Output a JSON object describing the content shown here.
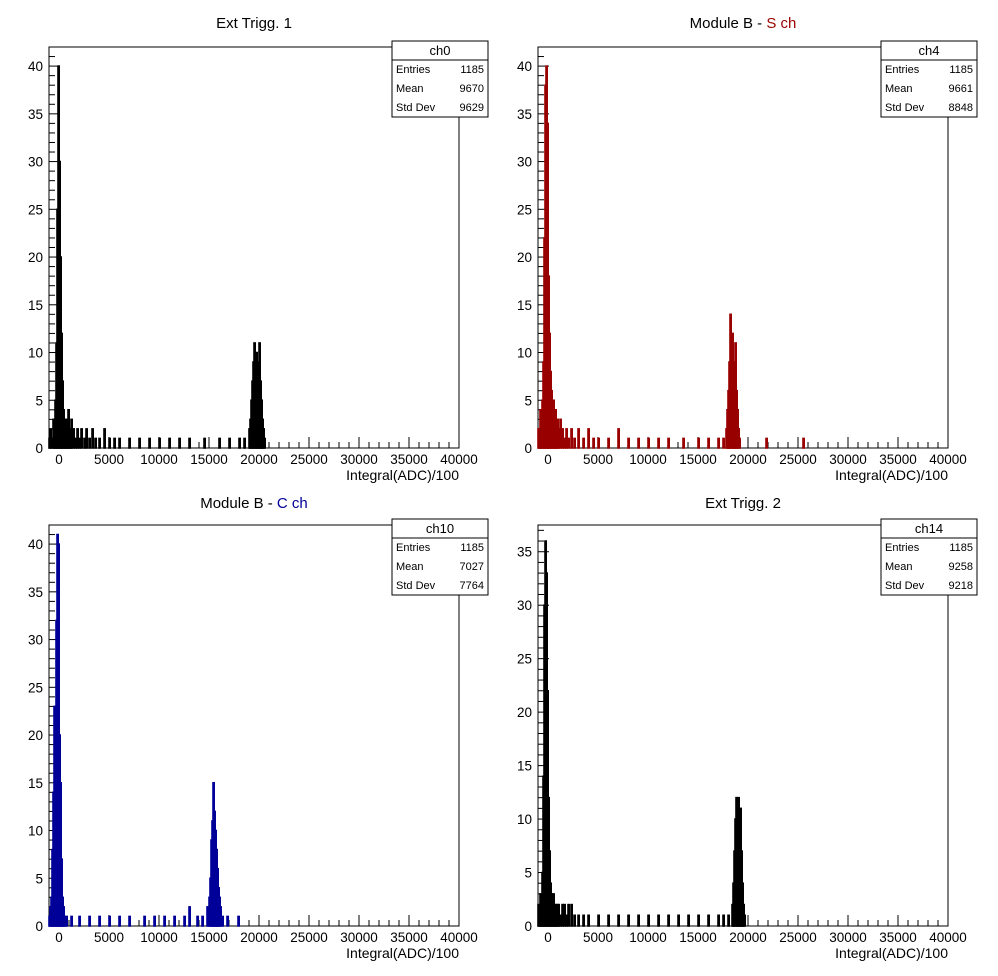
{
  "chart_data": [
    {
      "type": "bar",
      "title": "Ext Trigg. 1",
      "title_parts": [],
      "xlabel": "Integral(ADC)/100",
      "ylabel": "",
      "xlim": [
        -1000,
        40000
      ],
      "ylim": [
        0,
        42
      ],
      "x_ticks": [
        "0",
        "5000",
        "10000",
        "15000",
        "20000",
        "25000",
        "30000",
        "35000",
        "40000"
      ],
      "y_ticks": [
        "0",
        "5",
        "10",
        "15",
        "20",
        "25",
        "30",
        "35",
        "40"
      ],
      "color": "#000000",
      "legend": "none",
      "grid": false,
      "stats": {
        "name": "ch0",
        "rows": [
          {
            "label": "Entries",
            "value": "1185"
          },
          {
            "label": "Mean",
            "value": "9670"
          },
          {
            "label": "Std Dev",
            "value": "9629"
          }
        ]
      },
      "bin_width": 100,
      "bins": [
        {
          "x": -1000,
          "y": 1
        },
        {
          "x": -900,
          "y": 2
        },
        {
          "x": -800,
          "y": 0
        },
        {
          "x": -700,
          "y": 1
        },
        {
          "x": -600,
          "y": 3
        },
        {
          "x": -500,
          "y": 2
        },
        {
          "x": -400,
          "y": 5
        },
        {
          "x": -300,
          "y": 11
        },
        {
          "x": -200,
          "y": 25
        },
        {
          "x": -100,
          "y": 40
        },
        {
          "x": 0,
          "y": 30
        },
        {
          "x": 100,
          "y": 20
        },
        {
          "x": 200,
          "y": 12
        },
        {
          "x": 300,
          "y": 7
        },
        {
          "x": 400,
          "y": 4
        },
        {
          "x": 500,
          "y": 3
        },
        {
          "x": 600,
          "y": 2
        },
        {
          "x": 700,
          "y": 3
        },
        {
          "x": 800,
          "y": 1
        },
        {
          "x": 900,
          "y": 4
        },
        {
          "x": 1000,
          "y": 2
        },
        {
          "x": 1100,
          "y": 1
        },
        {
          "x": 1200,
          "y": 3
        },
        {
          "x": 1400,
          "y": 2
        },
        {
          "x": 1600,
          "y": 1
        },
        {
          "x": 1800,
          "y": 2
        },
        {
          "x": 2000,
          "y": 1
        },
        {
          "x": 2200,
          "y": 2
        },
        {
          "x": 2500,
          "y": 1
        },
        {
          "x": 2700,
          "y": 2
        },
        {
          "x": 3000,
          "y": 1
        },
        {
          "x": 3300,
          "y": 2
        },
        {
          "x": 3600,
          "y": 1
        },
        {
          "x": 4000,
          "y": 1
        },
        {
          "x": 4500,
          "y": 2
        },
        {
          "x": 5000,
          "y": 1
        },
        {
          "x": 5500,
          "y": 1
        },
        {
          "x": 6000,
          "y": 1
        },
        {
          "x": 7000,
          "y": 1
        },
        {
          "x": 8000,
          "y": 1
        },
        {
          "x": 9000,
          "y": 1
        },
        {
          "x": 10000,
          "y": 1
        },
        {
          "x": 11000,
          "y": 1
        },
        {
          "x": 12000,
          "y": 1
        },
        {
          "x": 13000,
          "y": 1
        },
        {
          "x": 14500,
          "y": 1
        },
        {
          "x": 16000,
          "y": 1
        },
        {
          "x": 17000,
          "y": 1
        },
        {
          "x": 18000,
          "y": 1
        },
        {
          "x": 18500,
          "y": 1
        },
        {
          "x": 19000,
          "y": 2
        },
        {
          "x": 19100,
          "y": 3
        },
        {
          "x": 19200,
          "y": 5
        },
        {
          "x": 19300,
          "y": 7
        },
        {
          "x": 19400,
          "y": 9
        },
        {
          "x": 19500,
          "y": 11
        },
        {
          "x": 19600,
          "y": 8
        },
        {
          "x": 19700,
          "y": 10
        },
        {
          "x": 19800,
          "y": 6
        },
        {
          "x": 19900,
          "y": 9
        },
        {
          "x": 20000,
          "y": 11
        },
        {
          "x": 20100,
          "y": 7
        },
        {
          "x": 20200,
          "y": 5
        },
        {
          "x": 20300,
          "y": 3
        },
        {
          "x": 20400,
          "y": 2
        },
        {
          "x": 20500,
          "y": 1
        }
      ]
    },
    {
      "type": "bar",
      "title": "",
      "title_parts": [
        {
          "text": "Module B - ",
          "color": "#000000"
        },
        {
          "text": "S ch",
          "color": "#990000"
        }
      ],
      "xlabel": "Integral(ADC)/100",
      "ylabel": "",
      "xlim": [
        -1000,
        40000
      ],
      "ylim": [
        0,
        42
      ],
      "x_ticks": [
        "0",
        "5000",
        "10000",
        "15000",
        "20000",
        "25000",
        "30000",
        "35000",
        "40000"
      ],
      "y_ticks": [
        "0",
        "5",
        "10",
        "15",
        "20",
        "25",
        "30",
        "35",
        "40"
      ],
      "color": "#990000",
      "legend": "none",
      "grid": false,
      "stats": {
        "name": "ch4",
        "rows": [
          {
            "label": "Entries",
            "value": "1185"
          },
          {
            "label": "Mean",
            "value": "9661"
          },
          {
            "label": "Std Dev",
            "value": "8848"
          }
        ]
      },
      "bin_width": 100,
      "bins": [
        {
          "x": -1000,
          "y": 2
        },
        {
          "x": -900,
          "y": 1
        },
        {
          "x": -800,
          "y": 4
        },
        {
          "x": -700,
          "y": 2
        },
        {
          "x": -600,
          "y": 5
        },
        {
          "x": -500,
          "y": 9
        },
        {
          "x": -400,
          "y": 22
        },
        {
          "x": -300,
          "y": 38
        },
        {
          "x": -200,
          "y": 40
        },
        {
          "x": -100,
          "y": 34
        },
        {
          "x": 0,
          "y": 18
        },
        {
          "x": 100,
          "y": 12
        },
        {
          "x": 200,
          "y": 8
        },
        {
          "x": 300,
          "y": 6
        },
        {
          "x": 400,
          "y": 4
        },
        {
          "x": 500,
          "y": 5
        },
        {
          "x": 600,
          "y": 3
        },
        {
          "x": 700,
          "y": 4
        },
        {
          "x": 800,
          "y": 2
        },
        {
          "x": 900,
          "y": 3
        },
        {
          "x": 1000,
          "y": 2
        },
        {
          "x": 1200,
          "y": 3
        },
        {
          "x": 1400,
          "y": 2
        },
        {
          "x": 1600,
          "y": 1
        },
        {
          "x": 1800,
          "y": 2
        },
        {
          "x": 2000,
          "y": 1
        },
        {
          "x": 2300,
          "y": 2
        },
        {
          "x": 2600,
          "y": 1
        },
        {
          "x": 3000,
          "y": 2
        },
        {
          "x": 3500,
          "y": 1
        },
        {
          "x": 4000,
          "y": 2
        },
        {
          "x": 4500,
          "y": 1
        },
        {
          "x": 5000,
          "y": 1
        },
        {
          "x": 6000,
          "y": 1
        },
        {
          "x": 7000,
          "y": 2
        },
        {
          "x": 8000,
          "y": 1
        },
        {
          "x": 9000,
          "y": 1
        },
        {
          "x": 10000,
          "y": 1
        },
        {
          "x": 11000,
          "y": 1
        },
        {
          "x": 12000,
          "y": 1
        },
        {
          "x": 13500,
          "y": 1
        },
        {
          "x": 15000,
          "y": 1
        },
        {
          "x": 16000,
          "y": 1
        },
        {
          "x": 17000,
          "y": 1
        },
        {
          "x": 17500,
          "y": 1
        },
        {
          "x": 17800,
          "y": 2
        },
        {
          "x": 17900,
          "y": 4
        },
        {
          "x": 18000,
          "y": 6
        },
        {
          "x": 18100,
          "y": 9
        },
        {
          "x": 18200,
          "y": 14
        },
        {
          "x": 18300,
          "y": 8
        },
        {
          "x": 18400,
          "y": 12
        },
        {
          "x": 18500,
          "y": 7
        },
        {
          "x": 18600,
          "y": 9
        },
        {
          "x": 18700,
          "y": 11
        },
        {
          "x": 18800,
          "y": 6
        },
        {
          "x": 18900,
          "y": 4
        },
        {
          "x": 19000,
          "y": 2
        },
        {
          "x": 19100,
          "y": 1
        },
        {
          "x": 21800,
          "y": 1
        },
        {
          "x": 25500,
          "y": 1
        }
      ]
    },
    {
      "type": "bar",
      "title": "",
      "title_parts": [
        {
          "text": "Module B - ",
          "color": "#000000"
        },
        {
          "text": "C ch",
          "color": "#000099"
        }
      ],
      "xlabel": "Integral(ADC)/100",
      "ylabel": "",
      "xlim": [
        -1000,
        40000
      ],
      "ylim": [
        0,
        42
      ],
      "x_ticks": [
        "0",
        "5000",
        "10000",
        "15000",
        "20000",
        "25000",
        "30000",
        "35000",
        "40000"
      ],
      "y_ticks": [
        "0",
        "5",
        "10",
        "15",
        "20",
        "25",
        "30",
        "35",
        "40"
      ],
      "color": "#000099",
      "legend": "none",
      "grid": false,
      "stats": {
        "name": "ch10",
        "rows": [
          {
            "label": "Entries",
            "value": "1185"
          },
          {
            "label": "Mean",
            "value": "7027"
          },
          {
            "label": "Std Dev",
            "value": "7764"
          }
        ]
      },
      "bin_width": 100,
      "bins": [
        {
          "x": -1000,
          "y": 1
        },
        {
          "x": -900,
          "y": 2
        },
        {
          "x": -800,
          "y": 3
        },
        {
          "x": -700,
          "y": 8
        },
        {
          "x": -600,
          "y": 14
        },
        {
          "x": -500,
          "y": 23
        },
        {
          "x": -400,
          "y": 21
        },
        {
          "x": -300,
          "y": 32
        },
        {
          "x": -200,
          "y": 41
        },
        {
          "x": -100,
          "y": 40
        },
        {
          "x": 0,
          "y": 20
        },
        {
          "x": 100,
          "y": 15
        },
        {
          "x": 200,
          "y": 7
        },
        {
          "x": 300,
          "y": 3
        },
        {
          "x": 400,
          "y": 2
        },
        {
          "x": 500,
          "y": 1
        },
        {
          "x": 700,
          "y": 1
        },
        {
          "x": 1200,
          "y": 1
        },
        {
          "x": 2000,
          "y": 1
        },
        {
          "x": 3000,
          "y": 1
        },
        {
          "x": 4000,
          "y": 1
        },
        {
          "x": 5000,
          "y": 1
        },
        {
          "x": 6000,
          "y": 1
        },
        {
          "x": 7000,
          "y": 1
        },
        {
          "x": 8500,
          "y": 1
        },
        {
          "x": 9500,
          "y": 1
        },
        {
          "x": 10500,
          "y": 1
        },
        {
          "x": 11500,
          "y": 1
        },
        {
          "x": 12500,
          "y": 1
        },
        {
          "x": 13000,
          "y": 2
        },
        {
          "x": 13800,
          "y": 1
        },
        {
          "x": 14300,
          "y": 1
        },
        {
          "x": 14800,
          "y": 2
        },
        {
          "x": 15000,
          "y": 3
        },
        {
          "x": 15100,
          "y": 5
        },
        {
          "x": 15200,
          "y": 9
        },
        {
          "x": 15300,
          "y": 11
        },
        {
          "x": 15400,
          "y": 15
        },
        {
          "x": 15500,
          "y": 12
        },
        {
          "x": 15600,
          "y": 10
        },
        {
          "x": 15700,
          "y": 8
        },
        {
          "x": 15800,
          "y": 6
        },
        {
          "x": 15900,
          "y": 4
        },
        {
          "x": 16000,
          "y": 3
        },
        {
          "x": 16100,
          "y": 2
        },
        {
          "x": 16300,
          "y": 1
        },
        {
          "x": 16800,
          "y": 1
        },
        {
          "x": 17900,
          "y": 1
        }
      ]
    },
    {
      "type": "bar",
      "title": "Ext Trigg. 2",
      "title_parts": [],
      "xlabel": "Integral(ADC)/100",
      "ylabel": "",
      "xlim": [
        -1000,
        40000
      ],
      "ylim": [
        0,
        37.5
      ],
      "x_ticks": [
        "0",
        "5000",
        "10000",
        "15000",
        "20000",
        "25000",
        "30000",
        "35000",
        "40000"
      ],
      "y_ticks": [
        "0",
        "5",
        "10",
        "15",
        "20",
        "25",
        "30",
        "35"
      ],
      "color": "#000000",
      "legend": "none",
      "grid": false,
      "stats": {
        "name": "ch14",
        "rows": [
          {
            "label": "Entries",
            "value": "1185"
          },
          {
            "label": "Mean",
            "value": "9258"
          },
          {
            "label": "Std Dev",
            "value": "9218"
          }
        ]
      },
      "bin_width": 100,
      "bins": [
        {
          "x": -1000,
          "y": 2
        },
        {
          "x": -900,
          "y": 1
        },
        {
          "x": -800,
          "y": 3
        },
        {
          "x": -700,
          "y": 2
        },
        {
          "x": -600,
          "y": 5
        },
        {
          "x": -500,
          "y": 14
        },
        {
          "x": -400,
          "y": 30
        },
        {
          "x": -300,
          "y": 36
        },
        {
          "x": -200,
          "y": 33
        },
        {
          "x": -100,
          "y": 22
        },
        {
          "x": 0,
          "y": 12
        },
        {
          "x": 100,
          "y": 7
        },
        {
          "x": 200,
          "y": 4
        },
        {
          "x": 300,
          "y": 3
        },
        {
          "x": 400,
          "y": 2
        },
        {
          "x": 500,
          "y": 3
        },
        {
          "x": 600,
          "y": 2
        },
        {
          "x": 700,
          "y": 2
        },
        {
          "x": 800,
          "y": 1
        },
        {
          "x": 900,
          "y": 2
        },
        {
          "x": 1000,
          "y": 2
        },
        {
          "x": 1200,
          "y": 1
        },
        {
          "x": 1400,
          "y": 2
        },
        {
          "x": 1600,
          "y": 2
        },
        {
          "x": 1800,
          "y": 1
        },
        {
          "x": 2000,
          "y": 2
        },
        {
          "x": 2300,
          "y": 2
        },
        {
          "x": 2600,
          "y": 1
        },
        {
          "x": 3000,
          "y": 1
        },
        {
          "x": 3500,
          "y": 1
        },
        {
          "x": 4000,
          "y": 1
        },
        {
          "x": 5000,
          "y": 1
        },
        {
          "x": 6000,
          "y": 1
        },
        {
          "x": 7000,
          "y": 1
        },
        {
          "x": 8000,
          "y": 1
        },
        {
          "x": 9000,
          "y": 1
        },
        {
          "x": 10000,
          "y": 1
        },
        {
          "x": 11000,
          "y": 1
        },
        {
          "x": 12000,
          "y": 1
        },
        {
          "x": 13000,
          "y": 1
        },
        {
          "x": 14000,
          "y": 1
        },
        {
          "x": 15000,
          "y": 1
        },
        {
          "x": 16000,
          "y": 1
        },
        {
          "x": 17000,
          "y": 1
        },
        {
          "x": 17500,
          "y": 1
        },
        {
          "x": 18000,
          "y": 1
        },
        {
          "x": 18400,
          "y": 2
        },
        {
          "x": 18500,
          "y": 4
        },
        {
          "x": 18600,
          "y": 7
        },
        {
          "x": 18700,
          "y": 10
        },
        {
          "x": 18800,
          "y": 12
        },
        {
          "x": 18900,
          "y": 9
        },
        {
          "x": 19000,
          "y": 12
        },
        {
          "x": 19100,
          "y": 8
        },
        {
          "x": 19200,
          "y": 11
        },
        {
          "x": 19300,
          "y": 7
        },
        {
          "x": 19400,
          "y": 4
        },
        {
          "x": 19500,
          "y": 2
        },
        {
          "x": 19600,
          "y": 1
        }
      ]
    }
  ]
}
